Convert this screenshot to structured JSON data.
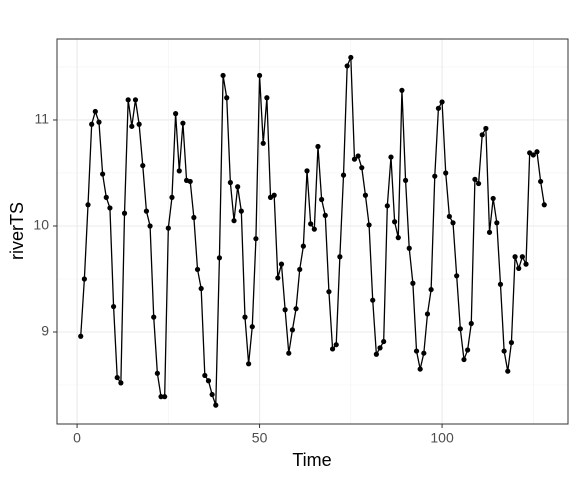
{
  "chart_data": {
    "type": "line",
    "x_label": "Time",
    "y_label": "riverTS",
    "x": [
      1,
      2,
      3,
      4,
      5,
      6,
      7,
      8,
      9,
      10,
      11,
      12,
      13,
      14,
      15,
      16,
      17,
      18,
      19,
      20,
      21,
      22,
      23,
      24,
      25,
      26,
      27,
      28,
      29,
      30,
      31,
      32,
      33,
      34,
      35,
      36,
      37,
      38,
      39,
      40,
      41,
      42,
      43,
      44,
      45,
      46,
      47,
      48,
      49,
      50,
      51,
      52,
      53,
      54,
      55,
      56,
      57,
      58,
      59,
      60,
      61,
      62,
      63,
      64,
      65,
      66,
      67,
      68,
      69,
      70,
      71,
      72,
      73,
      74,
      75,
      76,
      77,
      78,
      79,
      80,
      81,
      82,
      83,
      84,
      85,
      86,
      87,
      88,
      89,
      90,
      91,
      92,
      93,
      94,
      95,
      96,
      97,
      98,
      99,
      100,
      101,
      102,
      103,
      104,
      105,
      106,
      107,
      108,
      109,
      110,
      111,
      112,
      113,
      114,
      115,
      116,
      117,
      118,
      119,
      120,
      121,
      122,
      123,
      124,
      125,
      126,
      127,
      128
    ],
    "series": [
      {
        "color": "#000000",
        "values": [
          8.96,
          9.5,
          10.2,
          10.96,
          11.08,
          10.98,
          10.49,
          10.27,
          10.17,
          9.24,
          8.57,
          8.52,
          10.12,
          11.19,
          10.94,
          11.19,
          10.96,
          10.57,
          10.14,
          10.0,
          9.14,
          8.61,
          8.39,
          8.39,
          9.98,
          10.27,
          11.06,
          10.52,
          10.97,
          10.43,
          10.42,
          10.08,
          9.59,
          9.41,
          8.59,
          8.54,
          8.41,
          8.31,
          9.7,
          11.42,
          11.21,
          10.41,
          10.05,
          10.37,
          10.14,
          9.14,
          8.7,
          9.05,
          9.88,
          11.42,
          10.78,
          11.21,
          10.27,
          10.29,
          9.51,
          9.64,
          9.21,
          8.8,
          9.02,
          9.22,
          9.59,
          9.81,
          10.52,
          10.02,
          9.97,
          10.75,
          10.25,
          10.1,
          9.38,
          8.84,
          8.88,
          9.71,
          10.48,
          11.51,
          11.59,
          10.63,
          10.66,
          10.55,
          10.29,
          10.01,
          9.3,
          8.79,
          8.85,
          8.91,
          10.19,
          10.65,
          10.04,
          9.89,
          11.28,
          10.43,
          9.79,
          9.46,
          8.82,
          8.65,
          8.8,
          9.17,
          9.4,
          10.47,
          11.11,
          11.17,
          10.5,
          10.09,
          10.03,
          9.53,
          9.03,
          8.74,
          8.83,
          9.08,
          10.44,
          10.4,
          10.86,
          10.92,
          9.94,
          10.26,
          10.03,
          9.45,
          8.82,
          8.63,
          8.9,
          9.71,
          9.6,
          9.71,
          9.64,
          10.69,
          10.67,
          10.7,
          10.42,
          10.2
        ]
      }
    ],
    "xlim": [
      -5.5,
      134.5
    ],
    "ylim": [
      8.132,
      11.764
    ],
    "xticks": [
      0,
      50,
      100
    ],
    "yticks": [
      9,
      10,
      11
    ],
    "minor_xticks": [
      25,
      75,
      125
    ],
    "minor_yticks": [
      8.5,
      9.5,
      10.5,
      11.5
    ],
    "grid": true
  }
}
